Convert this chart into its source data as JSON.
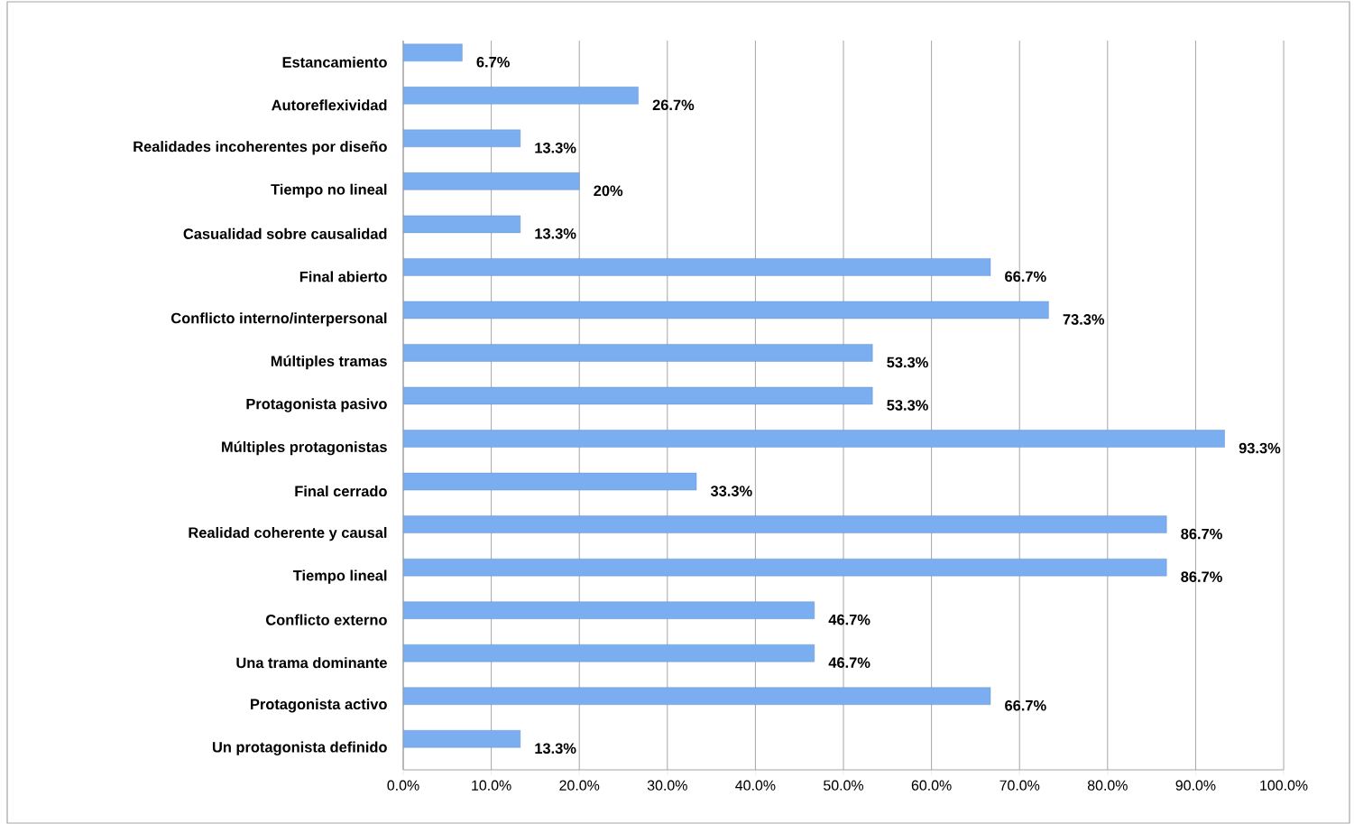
{
  "chart_data": {
    "type": "bar",
    "orientation": "horizontal",
    "categories": [
      "Estancamiento",
      "Autoreflexividad",
      "Realidades incoherentes por diseño",
      "Tiempo  no lineal",
      "Casualidad sobre causalidad",
      "Final abierto",
      "Conflicto interno/interpersonal",
      "Múltiples tramas",
      "Protagonista pasivo",
      "Múltiples protagonistas",
      "Final cerrado",
      "Realidad coherente y causal",
      "Tiempo lineal",
      "Conflicto externo",
      "Una trama dominante",
      "Protagonista activo",
      "Un protagonista definido"
    ],
    "values": [
      6.7,
      26.7,
      13.3,
      20,
      13.3,
      66.7,
      73.3,
      53.3,
      53.3,
      93.3,
      33.3,
      86.7,
      86.7,
      46.7,
      46.7,
      66.7,
      13.3
    ],
    "value_labels": [
      "6.7%",
      "26.7%",
      "13.3%",
      "20%",
      "13.3%",
      "66.7%",
      "73.3%",
      "53.3%",
      "53.3%",
      "93.3%",
      "33.3%",
      "86.7%",
      "86.7%",
      "46.7%",
      "46.7%",
      "66.7%",
      "13.3%"
    ],
    "color": "#7aaef0",
    "xlim": [
      0,
      100
    ],
    "xticks": [
      {
        "value": 0,
        "label": "0.0%"
      },
      {
        "value": 10,
        "label": "10.0%"
      },
      {
        "value": 20,
        "label": "20.0%"
      },
      {
        "value": 30,
        "label": "30.0%"
      },
      {
        "value": 40,
        "label": "40.0%"
      },
      {
        "value": 50,
        "label": "50.0%"
      },
      {
        "value": 60,
        "label": "60.0%"
      },
      {
        "value": 70,
        "label": "70.0%"
      },
      {
        "value": 80,
        "label": "80.0%"
      },
      {
        "value": 90,
        "label": "90.0%"
      },
      {
        "value": 100,
        "label": "100.0%"
      }
    ],
    "grid": "x"
  }
}
